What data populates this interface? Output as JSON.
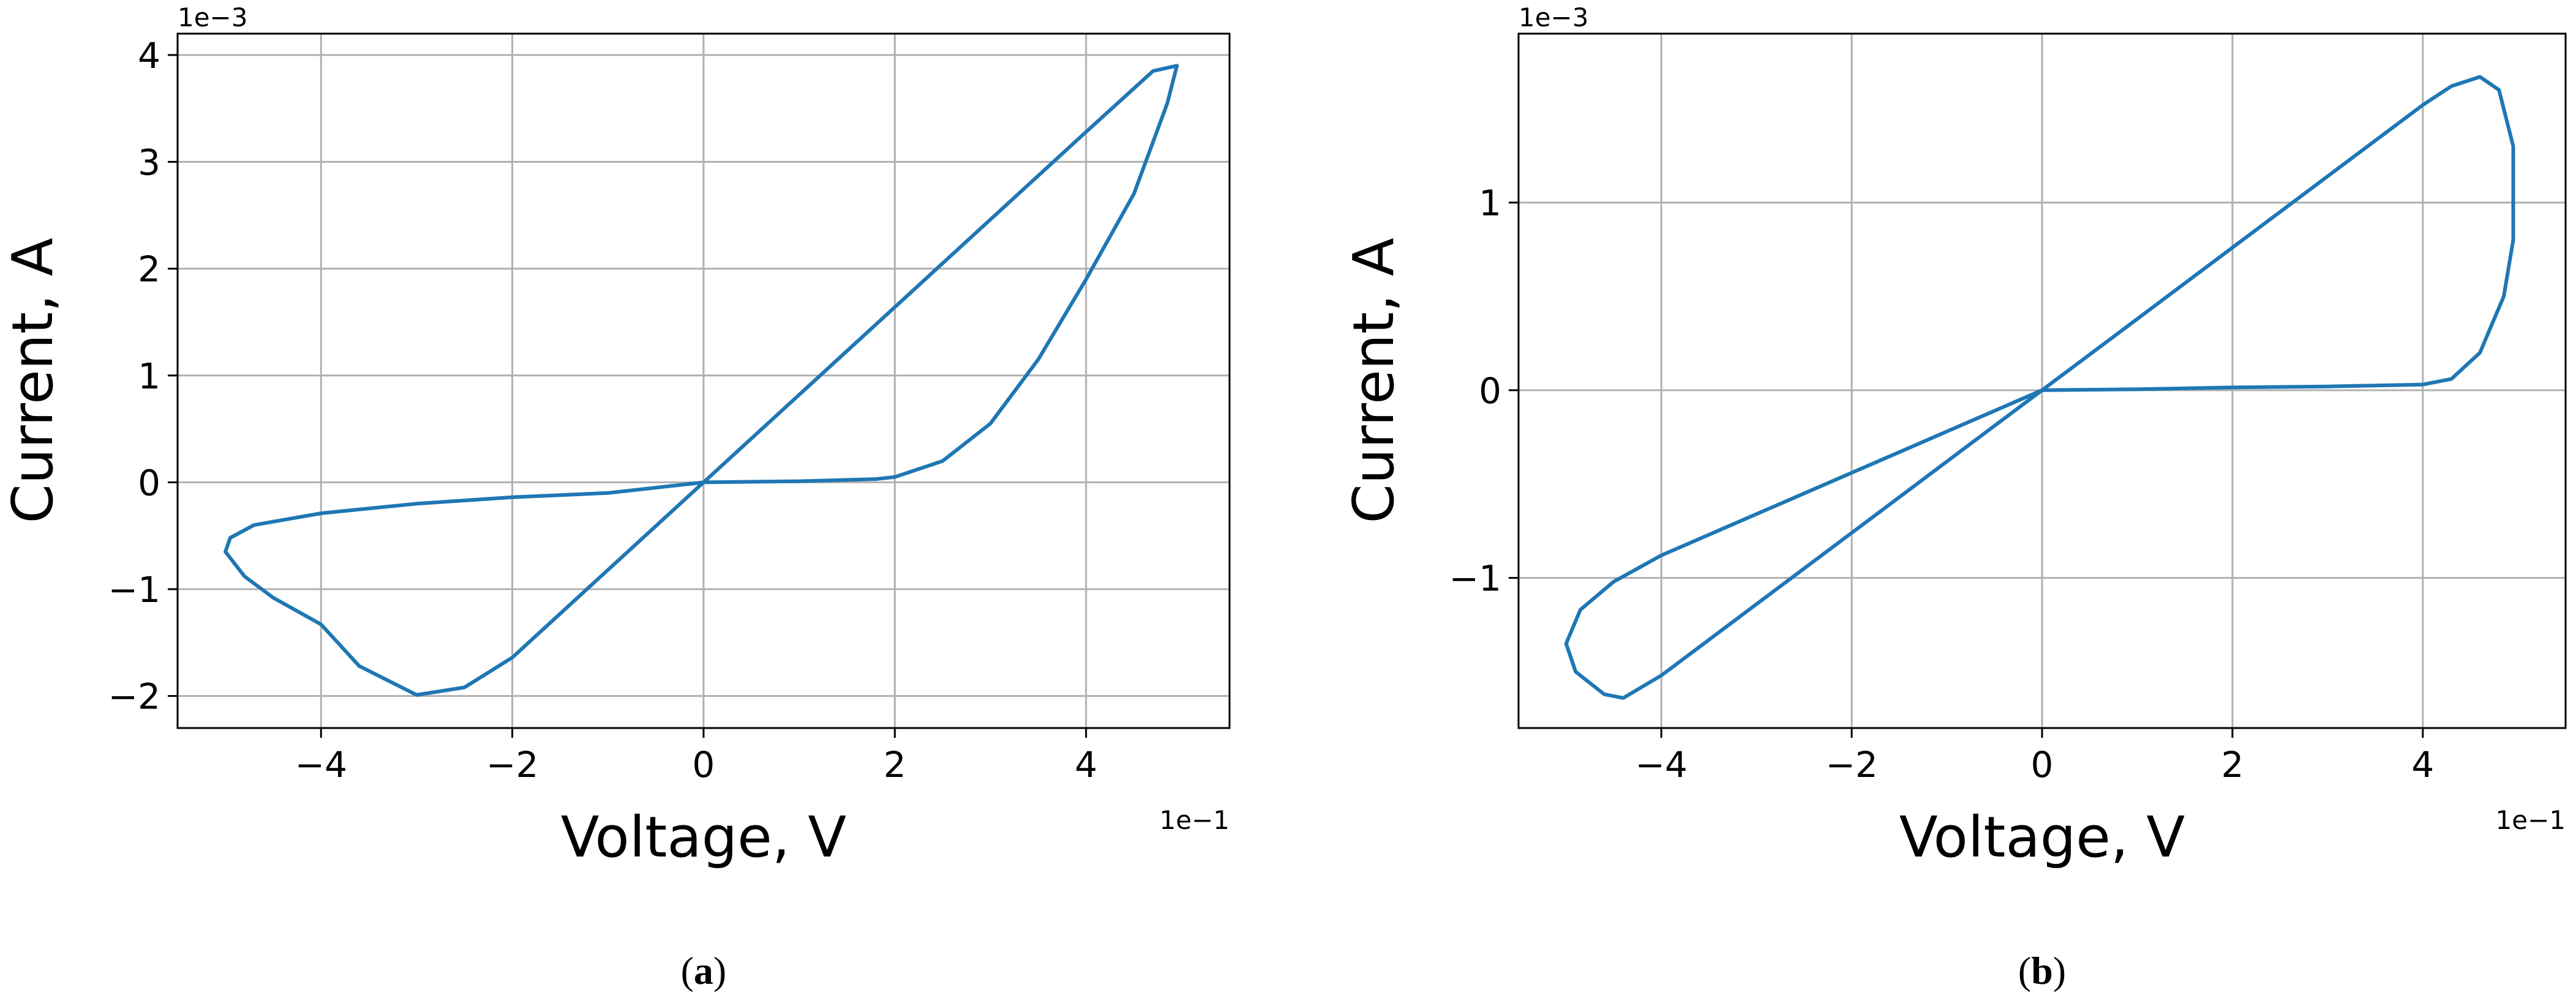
{
  "chart_data": [
    {
      "type": "line",
      "panel_label": "a",
      "caption_open": "(",
      "caption_close": ")",
      "xlabel": "Voltage, V",
      "ylabel": "Current, A",
      "x_multiplier": "1e−1",
      "y_multiplier": "1e−3",
      "xlim": [
        -5.5,
        5.5
      ],
      "ylim": [
        -2.3,
        4.2
      ],
      "xticks": [
        -4,
        -2,
        0,
        2,
        4
      ],
      "yticks": [
        -2,
        -1,
        0,
        1,
        2,
        3,
        4
      ],
      "xtick_labels": [
        "−4",
        "−2",
        "0",
        "2",
        "4"
      ],
      "ytick_labels": [
        "−2",
        "−1",
        "0",
        "1",
        "2",
        "3",
        "4"
      ],
      "grid": true,
      "color": "#1f77b4",
      "series": [
        {
          "x": [
            0,
            1.0,
            2.0,
            3.0,
            4.0,
            4.7,
            4.95,
            4.85,
            4.5,
            4.0,
            3.5,
            3.0,
            2.5,
            2.0,
            1.8,
            1.0,
            0,
            -1.0,
            -2.0,
            -3.0,
            -4.0,
            -4.7,
            -4.95,
            -5.0,
            -4.8,
            -4.5,
            -4.0,
            -3.6,
            -3.0,
            -2.5,
            -2.0,
            -1.0,
            0
          ],
          "y": [
            0,
            0.82,
            1.64,
            2.46,
            3.28,
            3.85,
            3.9,
            3.55,
            2.7,
            1.9,
            1.15,
            0.55,
            0.2,
            0.05,
            0.03,
            0.01,
            0,
            -0.1,
            -0.14,
            -0.2,
            -0.29,
            -0.4,
            -0.52,
            -0.65,
            -0.88,
            -1.08,
            -1.33,
            -1.72,
            -1.99,
            -1.92,
            -1.64,
            -0.82,
            0
          ]
        }
      ]
    },
    {
      "type": "line",
      "panel_label": "b",
      "caption_open": "(",
      "caption_close": ")",
      "xlabel": "Voltage, V",
      "ylabel": "Current, A",
      "x_multiplier": "1e−1",
      "y_multiplier": "1e−3",
      "xlim": [
        -5.5,
        5.5
      ],
      "ylim": [
        -1.8,
        1.9
      ],
      "xticks": [
        -4,
        -2,
        0,
        2,
        4
      ],
      "yticks": [
        -1,
        0,
        1
      ],
      "xtick_labels": [
        "−4",
        "−2",
        "0",
        "2",
        "4"
      ],
      "ytick_labels": [
        "−1",
        "0",
        "1"
      ],
      "grid": true,
      "color": "#1f77b4",
      "series": [
        {
          "x": [
            0,
            1.0,
            2.0,
            3.0,
            4.0,
            4.3,
            4.6,
            4.8,
            4.95,
            4.95,
            4.85,
            4.6,
            4.3,
            4.0,
            3.0,
            2.0,
            1.0,
            0,
            -1.0,
            -2.0,
            -3.0,
            -4.0,
            -4.5,
            -4.85,
            -5.0,
            -4.9,
            -4.6,
            -4.4,
            -4.0,
            -3.0,
            -2.0,
            -1.0,
            0
          ],
          "y": [
            0,
            0.38,
            0.76,
            1.14,
            1.52,
            1.62,
            1.67,
            1.6,
            1.3,
            0.8,
            0.5,
            0.2,
            0.06,
            0.03,
            0.02,
            0.015,
            0.005,
            0,
            -0.22,
            -0.44,
            -0.66,
            -0.88,
            -1.02,
            -1.17,
            -1.35,
            -1.5,
            -1.62,
            -1.64,
            -1.52,
            -1.14,
            -0.76,
            -0.38,
            0
          ]
        }
      ]
    }
  ]
}
